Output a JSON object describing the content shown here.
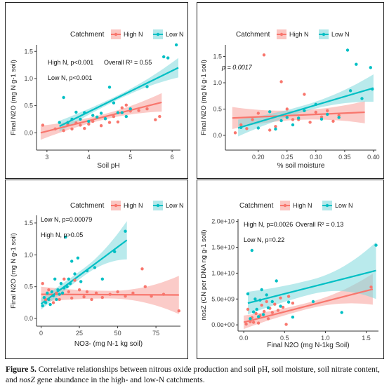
{
  "legend": {
    "title": "Catchment",
    "items": [
      {
        "label": "High N",
        "color": "#F8766D",
        "fill": "#F8A09A"
      },
      {
        "label": "Low N",
        "color": "#00BFC4",
        "fill": "#7FD9DC"
      }
    ]
  },
  "caption": {
    "label": "Figure 5.",
    "text_before": " Correlative relationships between nitrous oxide production and soil pH, soil moisture, soil nitrate content, and ",
    "italic": "nosZ",
    "text_after": " gene abundance in the high- and low-N catchments."
  },
  "chart_data": [
    {
      "type": "scatter",
      "title": "",
      "xlabel": "Soil pH",
      "ylabel": "Final N2O (mg N g-1 soil)",
      "xlim": [
        2.75,
        6.2
      ],
      "ylim": [
        -0.32,
        1.62
      ],
      "xticks": [
        3,
        4,
        5,
        6
      ],
      "yticks": [
        0.0,
        0.5,
        1.0,
        1.5
      ],
      "ytick_labels": [
        "0.0",
        "0.5",
        "1.0",
        "1.5"
      ],
      "annotations": [
        "High N, p<0.001",
        "Overall R² = 0.55",
        "Low N, p<0.001"
      ],
      "series": [
        {
          "name": "High N",
          "points": [
            [
              2.9,
              0.14
            ],
            [
              3.2,
              0.07
            ],
            [
              3.4,
              0.04
            ],
            [
              3.5,
              0.15
            ],
            [
              3.6,
              0.07
            ],
            [
              3.7,
              0.18
            ],
            [
              3.8,
              0.14
            ],
            [
              3.9,
              0.08
            ],
            [
              4.0,
              0.16
            ],
            [
              4.1,
              0.21
            ],
            [
              4.2,
              0.28
            ],
            [
              4.3,
              0.13
            ],
            [
              4.4,
              0.26
            ],
            [
              4.5,
              0.19
            ],
            [
              4.6,
              0.3
            ],
            [
              4.7,
              0.2
            ],
            [
              4.8,
              0.46
            ],
            [
              4.9,
              0.51
            ],
            [
              5.0,
              0.4
            ],
            [
              5.2,
              0.41
            ],
            [
              5.4,
              0.44
            ],
            [
              5.6,
              0.24
            ],
            [
              5.7,
              0.3
            ]
          ],
          "fit": [
            [
              2.85,
              0.0
            ],
            [
              5.75,
              0.56
            ]
          ],
          "band_half_width": [
            0.13,
            0.05,
            0.17
          ]
        },
        {
          "name": "Low N",
          "points": [
            [
              3.3,
              0.19
            ],
            [
              3.4,
              0.65
            ],
            [
              3.5,
              0.19
            ],
            [
              3.6,
              0.25
            ],
            [
              3.7,
              0.38
            ],
            [
              3.8,
              0.25
            ],
            [
              3.9,
              0.37
            ],
            [
              4.0,
              0.21
            ],
            [
              4.1,
              0.32
            ],
            [
              4.2,
              0.29
            ],
            [
              4.3,
              0.36
            ],
            [
              4.4,
              0.26
            ],
            [
              4.5,
              0.84
            ],
            [
              4.6,
              0.55
            ],
            [
              4.7,
              0.37
            ],
            [
              4.8,
              0.37
            ],
            [
              4.9,
              0.3
            ],
            [
              5.0,
              0.44
            ],
            [
              5.4,
              0.85
            ],
            [
              5.8,
              1.4
            ],
            [
              5.9,
              1.38
            ],
            [
              6.1,
              1.62
            ]
          ],
          "fit": [
            [
              3.3,
              0.12
            ],
            [
              6.15,
              1.2
            ]
          ],
          "band_half_width": [
            0.1,
            0.04,
            0.18
          ]
        }
      ]
    },
    {
      "type": "scatter",
      "title": "",
      "xlabel": "% soil moisture",
      "ylabel": "Final N2O (mg N g-1 soil)",
      "xlim": [
        0.143,
        0.405
      ],
      "ylim": [
        -0.28,
        1.72
      ],
      "xticks": [
        0.2,
        0.25,
        0.3,
        0.35,
        0.4
      ],
      "yticks": [
        0.0,
        0.5,
        1.0,
        1.5
      ],
      "xtick_labels": [
        "0.20",
        "0.25",
        "0.30",
        "0.35",
        "0.40"
      ],
      "ytick_labels": [
        "0.0",
        "0.5",
        "1.0",
        "1.5"
      ],
      "annotations": [
        "p = 0.0017"
      ],
      "series": [
        {
          "name": "High N",
          "points": [
            [
              0.16,
              0.05
            ],
            [
              0.17,
              0.2
            ],
            [
              0.18,
              0.13
            ],
            [
              0.19,
              0.3
            ],
            [
              0.2,
              0.42
            ],
            [
              0.21,
              1.53
            ],
            [
              0.22,
              0.1
            ],
            [
              0.23,
              0.17
            ],
            [
              0.24,
              1.02
            ],
            [
              0.25,
              0.5
            ],
            [
              0.26,
              0.3
            ],
            [
              0.27,
              0.3
            ],
            [
              0.28,
              0.78
            ],
            [
              0.29,
              0.25
            ],
            [
              0.3,
              0.44
            ],
            [
              0.31,
              0.35
            ],
            [
              0.32,
              0.47
            ],
            [
              0.33,
              0.27
            ],
            [
              0.34,
              0.38
            ]
          ],
          "fit": [
            [
              0.155,
              0.33
            ],
            [
              0.385,
              0.44
            ]
          ],
          "band_half_width": [
            0.21,
            0.09,
            0.21
          ]
        },
        {
          "name": "Low N",
          "points": [
            [
              0.17,
              0.15
            ],
            [
              0.2,
              0.14
            ],
            [
              0.22,
              0.45
            ],
            [
              0.23,
              0.12
            ],
            [
              0.24,
              0.28
            ],
            [
              0.25,
              0.34
            ],
            [
              0.26,
              0.2
            ],
            [
              0.27,
              0.33
            ],
            [
              0.28,
              0.47
            ],
            [
              0.3,
              0.59
            ],
            [
              0.31,
              0.31
            ],
            [
              0.32,
              0.4
            ],
            [
              0.34,
              0.34
            ],
            [
              0.355,
              1.62
            ],
            [
              0.36,
              0.85
            ],
            [
              0.37,
              1.35
            ],
            [
              0.38,
              0.7
            ],
            [
              0.395,
              1.29
            ],
            [
              0.398,
              0.88
            ]
          ],
          "fit": [
            [
              0.165,
              0.14
            ],
            [
              0.4,
              0.9
            ]
          ],
          "band_half_width": [
            0.16,
            0.06,
            0.26
          ]
        }
      ]
    },
    {
      "type": "scatter",
      "title": "",
      "xlabel": "NO3- (mg N-1 kg soil)",
      "ylabel": "Final N2O (mg N g-1 soil)",
      "xlim": [
        -3,
        91
      ],
      "ylim": [
        -0.12,
        1.62
      ],
      "xticks": [
        0,
        25,
        50,
        75
      ],
      "yticks": [
        0.0,
        0.5,
        1.0,
        1.5
      ],
      "ytick_labels": [
        "0.0",
        "0.5",
        "1.0",
        "1.5"
      ],
      "annotations": [
        "Low N, p=0.00079",
        "High N, p>0.05"
      ],
      "series": [
        {
          "name": "High N",
          "points": [
            [
              1,
              0.55
            ],
            [
              3,
              0.3
            ],
            [
              5,
              0.45
            ],
            [
              8,
              0.25
            ],
            [
              10,
              0.4
            ],
            [
              12,
              0.3
            ],
            [
              15,
              0.62
            ],
            [
              18,
              0.42
            ],
            [
              20,
              0.32
            ],
            [
              22,
              0.6
            ],
            [
              25,
              0.45
            ],
            [
              28,
              0.34
            ],
            [
              30,
              0.42
            ],
            [
              33,
              0.3
            ],
            [
              36,
              0.4
            ],
            [
              40,
              0.33
            ],
            [
              45,
              0.38
            ],
            [
              50,
              0.42
            ],
            [
              55,
              0.35
            ],
            [
              60,
              0.4
            ],
            [
              66,
              0.78
            ],
            [
              68,
              0.5
            ],
            [
              72,
              0.35
            ],
            [
              80,
              0.38
            ],
            [
              90,
              0.12
            ]
          ],
          "fit": [
            [
              0,
              0.38
            ],
            [
              90,
              0.37
            ]
          ],
          "band_half_width": [
            0.12,
            0.06,
            0.3
          ]
        },
        {
          "name": "Low N",
          "points": [
            [
              1,
              0.2
            ],
            [
              2,
              0.33
            ],
            [
              3,
              0.25
            ],
            [
              4,
              0.4
            ],
            [
              5,
              0.3
            ],
            [
              6,
              0.22
            ],
            [
              7,
              0.42
            ],
            [
              8,
              0.36
            ],
            [
              9,
              0.62
            ],
            [
              10,
              0.3
            ],
            [
              11,
              0.45
            ],
            [
              12,
              0.38
            ],
            [
              13,
              0.55
            ],
            [
              14,
              0.4
            ],
            [
              15,
              0.48
            ],
            [
              16,
              1.28
            ],
            [
              17,
              0.5
            ],
            [
              18,
              0.62
            ],
            [
              19,
              0.55
            ],
            [
              20,
              0.9
            ],
            [
              22,
              0.7
            ],
            [
              24,
              0.95
            ],
            [
              26,
              0.58
            ],
            [
              30,
              0.75
            ],
            [
              35,
              0.8
            ],
            [
              40,
              0.62
            ],
            [
              48,
              1.05
            ],
            [
              55,
              1.37
            ]
          ],
          "fit": [
            [
              0,
              0.23
            ],
            [
              56,
              1.23
            ]
          ],
          "band_half_width": [
            0.09,
            0.06,
            0.3
          ]
        }
      ]
    },
    {
      "type": "scatter",
      "title": "",
      "xlabel": "Final N2O (mg N-1kg Soil)",
      "ylabel": "nosZ (CN per DNA ng g-1 soil)",
      "xlim": [
        -0.07,
        1.65
      ],
      "ylim": [
        -1200000000.0,
        20500000000.0
      ],
      "xticks": [
        0.0,
        0.5,
        1.0,
        1.5
      ],
      "yticks": [
        0,
        5000000000.0,
        10000000000.0,
        15000000000.0,
        20000000000.0
      ],
      "xtick_labels": [
        "0.0",
        "0.5",
        "1.0",
        "1.5"
      ],
      "ytick_labels": [
        "0.0e+00",
        "5.0e+09",
        "1.0e+10",
        "1.5e+10",
        "2.0e+10"
      ],
      "annotations": [
        "High N, p=0.0026",
        "Overall R² = 0.13",
        "Low N, p=0.22"
      ],
      "series": [
        {
          "name": "High N",
          "points": [
            [
              0.03,
              150000000.0
            ],
            [
              0.05,
              3000000000.0
            ],
            [
              0.08,
              600000000.0
            ],
            [
              0.1,
              1400000000.0
            ],
            [
              0.12,
              500000000.0
            ],
            [
              0.15,
              2200000000.0
            ],
            [
              0.18,
              350000000.0
            ],
            [
              0.2,
              1800000000.0
            ],
            [
              0.22,
              3800000000.0
            ],
            [
              0.25,
              2600000000.0
            ],
            [
              0.28,
              4500000000.0
            ],
            [
              0.3,
              1200000000.0
            ],
            [
              0.32,
              3200000000.0
            ],
            [
              0.35,
              2400000000.0
            ],
            [
              0.38,
              4000000000.0
            ],
            [
              0.42,
              2800000000.0
            ],
            [
              0.45,
              5200000000.0
            ],
            [
              0.48,
              3400000000.0
            ],
            [
              0.52,
              100000000.0
            ],
            [
              0.55,
              5500000000.0
            ],
            [
              0.6,
              4200000000.0
            ],
            [
              1.56,
              7300000000.0
            ]
          ],
          "fit": [
            [
              0.0,
              500000000.0
            ],
            [
              1.58,
              6900000000.0
            ]
          ],
          "band_half_width": [
            1300000000.0,
            600000000.0,
            3000000000.0
          ]
        },
        {
          "name": "Low N",
          "points": [
            [
              0.05,
              6000000000.0
            ],
            [
              0.08,
              1200000000.0
            ],
            [
              0.1,
              14400000000.0
            ],
            [
              0.12,
              2500000000.0
            ],
            [
              0.14,
              5000000000.0
            ],
            [
              0.16,
              3000000000.0
            ],
            [
              0.18,
              1600000000.0
            ],
            [
              0.2,
              4800000000.0
            ],
            [
              0.22,
              6800000000.0
            ],
            [
              0.24,
              2000000000.0
            ],
            [
              0.28,
              5800000000.0
            ],
            [
              0.3,
              3300000000.0
            ],
            [
              0.35,
              4500000000.0
            ],
            [
              0.4,
              8500000000.0
            ],
            [
              0.45,
              3600000000.0
            ],
            [
              0.55,
              4400000000.0
            ],
            [
              0.6,
              1500000000.0
            ],
            [
              0.85,
              4500000000.0
            ],
            [
              1.2,
              2400000000.0
            ],
            [
              1.62,
              15400000000.0
            ]
          ],
          "fit": [
            [
              0.05,
              4200000000.0
            ],
            [
              1.62,
              10500000000.0
            ]
          ],
          "band_half_width": [
            2200000000.0,
            1400000000.0,
            5500000000.0
          ]
        }
      ]
    }
  ]
}
